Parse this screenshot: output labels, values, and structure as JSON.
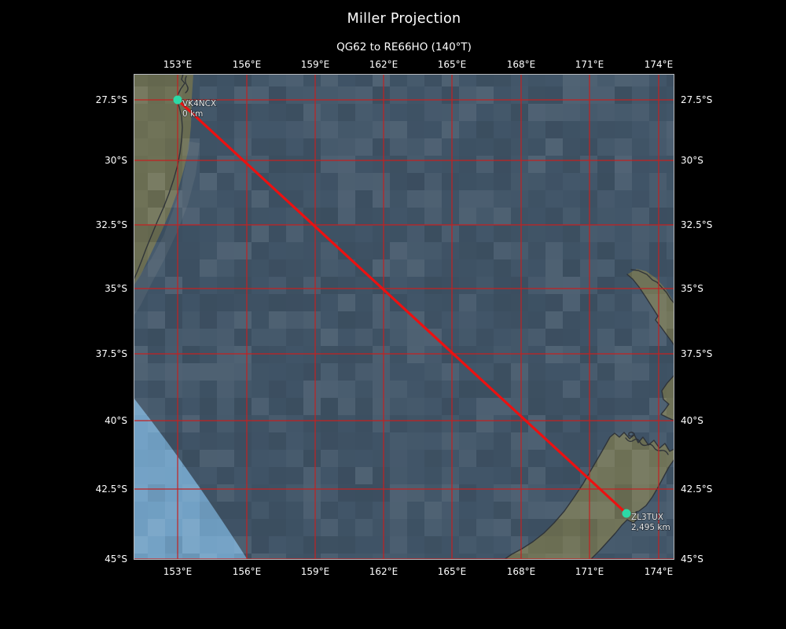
{
  "title": "Miller Projection",
  "subtitle": "QG62 to RE66HO (140°T)",
  "route": {
    "from_grid": "QG62",
    "to_grid": "RE66HO",
    "bearing": "140°T",
    "total_distance": "2,495 km"
  },
  "axes": {
    "lon_ticks": [
      "153°E",
      "156°E",
      "159°E",
      "162°E",
      "165°E",
      "168°E",
      "171°E",
      "174°E"
    ],
    "lat_ticks": [
      "27.5°S",
      "30°S",
      "32.5°S",
      "35°S",
      "37.5°S",
      "40°S",
      "42.5°S",
      "45°S"
    ]
  },
  "stations": [
    {
      "callsign": "VK4NCX",
      "distance": "0 km"
    },
    {
      "callsign": "ZL3TUX",
      "distance": "2,495 km"
    }
  ],
  "colors": {
    "background": "#000000",
    "ocean_night": "#415568",
    "ocean_day": "#72a1c5",
    "land": "#6e7156",
    "coastline": "#2b3036",
    "gridline": "#c32121",
    "route_line": "#ec1111",
    "station_marker": "#2cd9a6",
    "tick_text": "#ffffff",
    "station_text": "#e6e6e6",
    "axes_spine": "#b9bcc0"
  }
}
